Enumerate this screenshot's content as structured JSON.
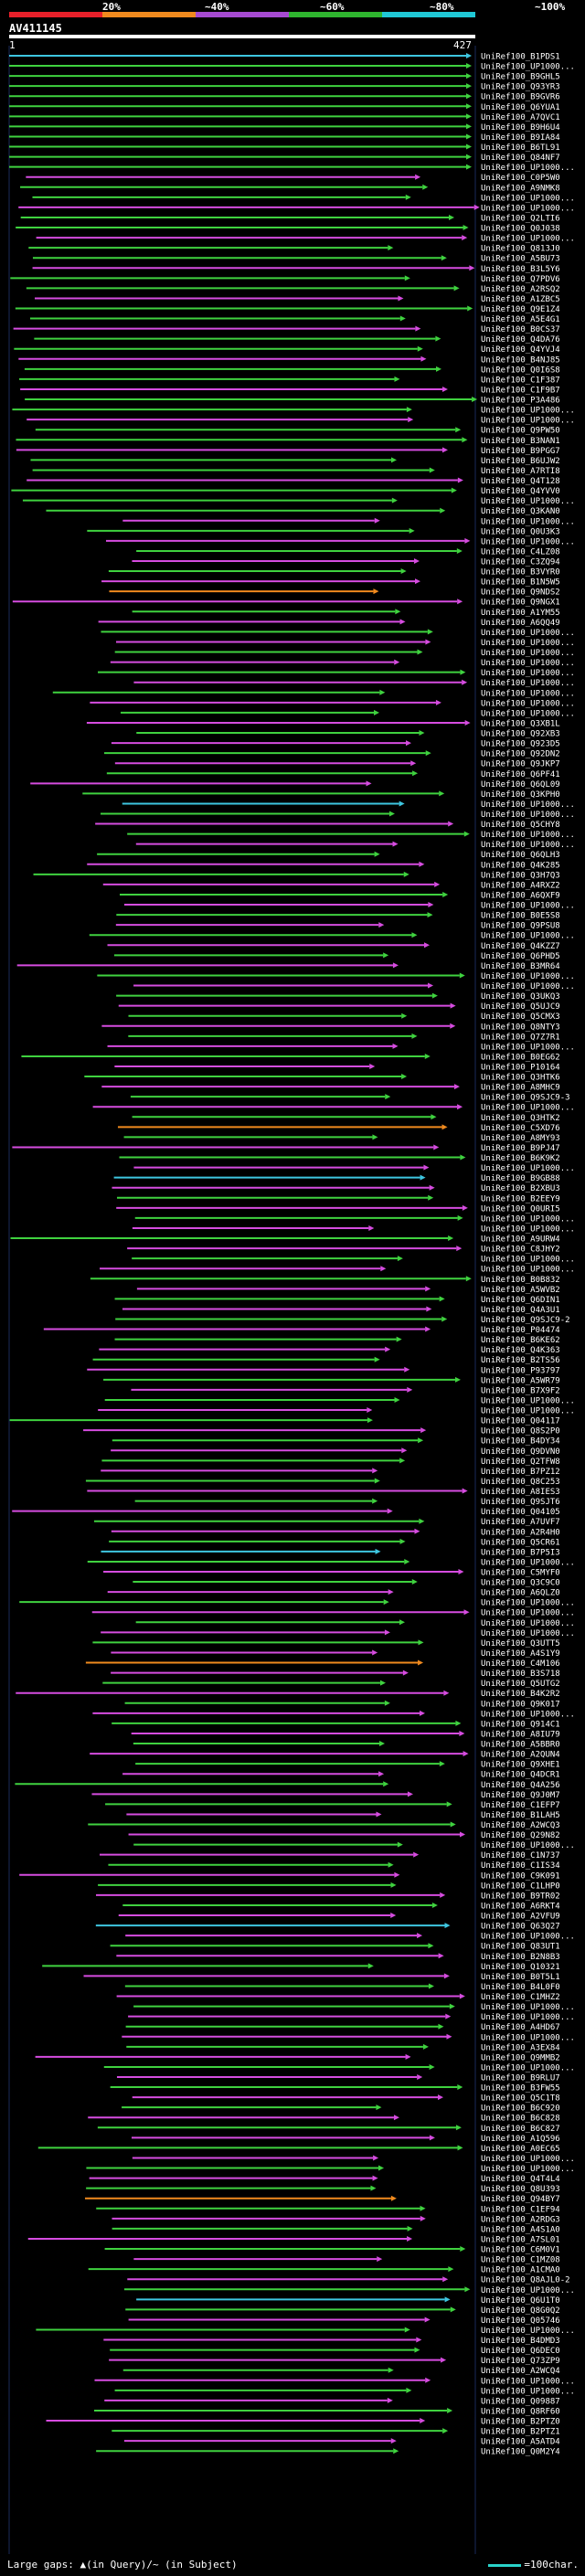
{
  "legend": {
    "ticks": [
      "20%",
      "~40%",
      "~60%",
      "~80%",
      "~100%"
    ],
    "colors": [
      "#e8202a",
      "#f08a1e",
      "#a64ad1",
      "#2fb52f",
      "#20c8d6"
    ]
  },
  "query": {
    "title": "AV411145",
    "start": "1",
    "end": "427"
  },
  "footer": {
    "text": "Large gaps: ▲(in Query)/~ (in Subject)",
    "scale": "=100char."
  },
  "chart_data": {
    "type": "table",
    "x_range": [
      1,
      427
    ],
    "hits": [
      "UniRef100_B1PDS1",
      "UniRef100_UP1000...",
      "UniRef100_B9GHL5",
      "UniRef100_Q93YR3",
      "UniRef100_B9GVR6",
      "UniRef100_Q6YUA1",
      "UniRef100_A7QVC1",
      "UniRef100_B9H6U4",
      "UniRef100_B9IA84",
      "UniRef100_B6TL91",
      "UniRef100_Q84NF7",
      "UniRef100_UP1000...",
      "UniRef100_C0P5W0",
      "UniRef100_A9NMK8",
      "UniRef100_UP1000...",
      "UniRef100_UP1000...",
      "UniRef100_Q2LTI6",
      "UniRef100_Q0J038",
      "UniRef100_UP1000...",
      "UniRef100_Q813J0",
      "UniRef100_A5BU73",
      "UniRef100_B3L5Y6",
      "UniRef100_Q7PDV6",
      "UniRef100_A2RSQ2",
      "UniRef100_A1ZBC5",
      "UniRef100_Q9E1Z4",
      "UniRef100_A5E4G1",
      "UniRef100_B0CS37",
      "UniRef100_Q4DA76",
      "UniRef100_Q4YVJ4",
      "UniRef100_B4NJ85",
      "UniRef100_Q0I6S8",
      "UniRef100_C1F387",
      "UniRef100_C1F9B7",
      "UniRef100_P3A486",
      "UniRef100_UP1000...",
      "UniRef100_UP1000...",
      "UniRef100_Q9PW50",
      "UniRef100_B3NAN1",
      "UniRef100_B9PGG7",
      "UniRef100_B6UJW2",
      "UniRef100_A7RTI8",
      "UniRef100_Q4T128",
      "UniRef100_Q4YVV0",
      "UniRef100_UP1000...",
      "UniRef100_Q3KAN0",
      "UniRef100_UP1000...",
      "UniRef100_Q0U3K3",
      "UniRef100_UP1000...",
      "UniRef100_C4LZ08",
      "UniRef100_C3ZQ94",
      "UniRef100_B3VYR0",
      "UniRef100_B1N5W5",
      "UniRef100_Q9NDS2",
      "UniRef100_Q9NGX1",
      "UniRef100_A1YM55",
      "UniRef100_A6QQ49",
      "UniRef100_UP1000...",
      "UniRef100_UP1000...",
      "UniRef100_UP1000...",
      "UniRef100_UP1000...",
      "UniRef100_UP1000...",
      "UniRef100_UP1000...",
      "UniRef100_UP1000...",
      "UniRef100_UP1000...",
      "UniRef100_UP1000...",
      "UniRef100_Q3XB1L",
      "UniRef100_Q92XB3",
      "UniRef100_Q923D5",
      "UniRef100_Q92DN2",
      "UniRef100_Q9JKP7",
      "UniRef100_Q6PF41",
      "UniRef100_Q6QL09",
      "UniRef100_Q3KPH0",
      "UniRef100_UP1000...",
      "UniRef100_UP1000...",
      "UniRef100_Q5CHY8",
      "UniRef100_UP1000...",
      "UniRef100_UP1000...",
      "UniRef100_Q6QLH3",
      "UniRef100_Q4K285",
      "UniRef100_Q3H7Q3",
      "UniRef100_A4RXZ2",
      "UniRef100_A6QXF9",
      "UniRef100_UP1000...",
      "UniRef100_B0E5S8",
      "UniRef100_Q9PSU8",
      "UniRef100_UP1000...",
      "UniRef100_Q4KZZ7",
      "UniRef100_Q6PHD5",
      "UniRef100_B3MR64",
      "UniRef100_UP1000...",
      "UniRef100_UP1000...",
      "UniRef100_Q3UKQ3",
      "UniRef100_Q5UJC9",
      "UniRef100_Q5CMX3",
      "UniRef100_Q8NTY3",
      "UniRef100_Q7Z7R1",
      "UniRef100_UP1000...",
      "UniRef100_B0EG62",
      "UniRef100_P10164",
      "UniRef100_Q3HTK6",
      "UniRef100_A8MHC9",
      "UniRef100_Q9SJC9-3",
      "UniRef100_UP1000...",
      "UniRef100_Q3HTK2",
      "UniRef100_C5XD76",
      "UniRef100_A8MY93",
      "UniRef100_B9PJ47",
      "UniRef100_B6K9K2",
      "UniRef100_UP1000...",
      "UniRef100_B9GB88",
      "UniRef100_B2XBU3",
      "UniRef100_B2EEY9",
      "UniRef100_Q0URI5",
      "UniRef100_UP1000...",
      "UniRef100_UP1000...",
      "UniRef100_A9URW4",
      "UniRef100_C8JHY2",
      "UniRef100_UP1000...",
      "UniRef100_UP1000...",
      "UniRef100_B0B832",
      "UniRef100_A5WVB2",
      "UniRef100_Q6DIN1",
      "UniRef100_Q4A3U1",
      "UniRef100_Q9SJC9-2",
      "UniRef100_P04474",
      "UniRef100_B6KE62",
      "UniRef100_Q4K363",
      "UniRef100_B2TS56",
      "UniRef100_P93797",
      "UniRef100_A5WR79",
      "UniRef100_B7X9F2",
      "UniRef100_UP1000...",
      "UniRef100_UP1000...",
      "UniRef100_Q04117",
      "UniRef100_Q8S2P0",
      "UniRef100_B4DY34",
      "UniRef100_Q9DVN0",
      "UniRef100_Q2TFW8",
      "UniRef100_B7PZ12",
      "UniRef100_Q8C253",
      "UniRef100_A8IES3",
      "UniRef100_Q9SJT6",
      "UniRef100_Q04105",
      "UniRef100_A7UVF7",
      "UniRef100_A2R4H0",
      "UniRef100_Q5CR61",
      "UniRef100_B7P5I3",
      "UniRef100_UP1000...",
      "UniRef100_C5MYF0",
      "UniRef100_Q3C9C0",
      "UniRef100_A6QLZ0",
      "UniRef100_UP1000...",
      "UniRef100_UP1000...",
      "UniRef100_UP1000...",
      "UniRef100_UP1000...",
      "UniRef100_Q3UTT5",
      "UniRef100_A4S1Y9",
      "UniRef100_C4M106",
      "UniRef100_B3S718",
      "UniRef100_Q5UTG2",
      "UniRef100_B4K2R2",
      "UniRef100_Q9K017",
      "UniRef100_UP1000...",
      "UniRef100_Q914C1",
      "UniRef100_A8IU79",
      "UniRef100_A5BBR0",
      "UniRef100_A2QUN4",
      "UniRef100_Q9XHE1",
      "UniRef100_Q4DCR1",
      "UniRef100_Q4A256",
      "UniRef100_Q9J0M7",
      "UniRef100_C1EFP7",
      "UniRef100_B1LAH5",
      "UniRef100_A2WCQ3",
      "UniRef100_Q29N82",
      "UniRef100_UP1000...",
      "UniRef100_C1N737",
      "UniRef100_C1IS34",
      "UniRef100_C9K091",
      "UniRef100_C1LHP0",
      "UniRef100_B9TR02",
      "UniRef100_A6RKT4",
      "UniRef100_A2VFU9",
      "UniRef100_Q63Q27",
      "UniRef100_UP1000...",
      "UniRef100_Q83UT1",
      "UniRef100_B2N8B3",
      "UniRef100_Q10321",
      "UniRef100_B0T5L1",
      "UniRef100_B4L0F0",
      "UniRef100_C1MHZ2",
      "UniRef100_UP1000...",
      "UniRef100_UP1000...",
      "UniRef100_A4HD67",
      "UniRef100_UP1000...",
      "UniRef100_A3EX84",
      "UniRef100_Q9MMB2",
      "UniRef100_UP1000...",
      "UniRef100_B9RLU7",
      "UniRef100_B3FW55",
      "UniRef100_Q5C1T8",
      "UniRef100_B6C920",
      "UniRef100_B6C828",
      "UniRef100_B6C827",
      "UniRef100_A1Q596",
      "UniRef100_A0EC65",
      "UniRef100_UP1000...",
      "UniRef100_UP1000...",
      "UniRef100_Q4T4L4",
      "UniRef100_Q8U393",
      "UniRef100_Q94BY7",
      "UniRef100_C1EF94",
      "UniRef100_A2RDG3",
      "UniRef100_A4S1A0",
      "UniRef100_A7SL01",
      "UniRef100_C6M0V1",
      "UniRef100_C1MZ08",
      "UniRef100_A1CMA0",
      "UniRef100_Q8AJL0-2",
      "UniRef100_UP1000...",
      "UniRef100_Q6U1T0",
      "UniRef100_Q8G0Q2",
      "UniRef100_Q05746",
      "UniRef100_UP1000...",
      "UniRef100_B4DMD3",
      "UniRef100_Q6DEC0",
      "UniRef100_Q73ZP9",
      "UniRef100_A2WCQ4",
      "UniRef100_UP1000...",
      "UniRef100_UP1000...",
      "UniRef100_Q09887",
      "UniRef100_Q8RF60",
      "UniRef100_B2PTZ0",
      "UniRef100_B2PTZ1",
      "UniRef100_A5ATD4",
      "UniRef100_Q0M2Y4"
    ]
  }
}
